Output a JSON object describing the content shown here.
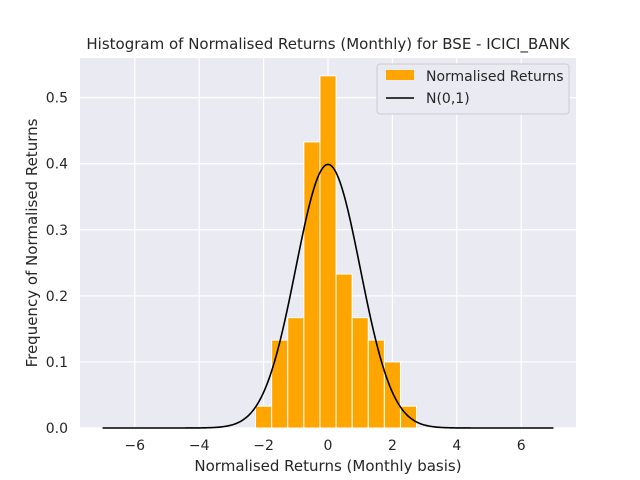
{
  "chart_data": {
    "type": "bar",
    "title": "Histogram of Normalised Returns (Monthly) for BSE - ICICI_BANK",
    "xlabel": "Normalised Returns (Monthly basis)",
    "ylabel": "Frequency of Normalised Returns",
    "xlim": [
      -7.7,
      7.7
    ],
    "ylim": [
      0,
      0.56
    ],
    "xticks": [
      -6,
      -4,
      -2,
      0,
      2,
      4,
      6
    ],
    "yticks": [
      0.0,
      0.1,
      0.2,
      0.3,
      0.4,
      0.5
    ],
    "grid": true,
    "legend_position": "top-right",
    "series": [
      {
        "name": "Normalised Returns",
        "type": "histogram",
        "color": "#FFA500",
        "bin_width": 0.5,
        "bins": [
          {
            "left": -2.25,
            "value": 0.033
          },
          {
            "left": -1.75,
            "value": 0.133
          },
          {
            "left": -1.25,
            "value": 0.167
          },
          {
            "left": -0.75,
            "value": 0.433
          },
          {
            "left": -0.25,
            "value": 0.533
          },
          {
            "left": 0.25,
            "value": 0.233
          },
          {
            "left": 0.75,
            "value": 0.167
          },
          {
            "left": 1.25,
            "value": 0.133
          },
          {
            "left": 1.75,
            "value": 0.1
          },
          {
            "left": 2.25,
            "value": 0.033
          }
        ]
      },
      {
        "name": "N(0,1)",
        "type": "line",
        "color": "#000000",
        "function": "normal_pdf",
        "mean": 0,
        "std": 1,
        "x_range": [
          -7,
          7
        ]
      }
    ]
  }
}
